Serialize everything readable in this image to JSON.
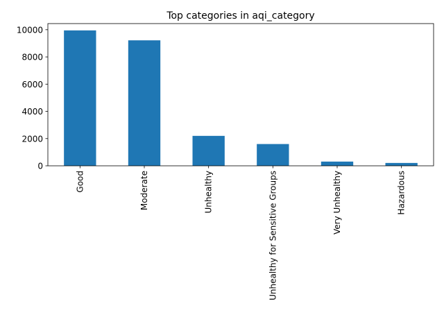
{
  "chart_data": {
    "type": "bar",
    "title": "Top categories in aqi_category",
    "xlabel": "",
    "ylabel": "",
    "categories": [
      "Good",
      "Moderate",
      "Unhealthy",
      "Unhealthy for Sensitive Groups",
      "Very Unhealthy",
      "Hazardous"
    ],
    "values": [
      9950,
      9220,
      2200,
      1600,
      310,
      210
    ],
    "ylim": [
      0,
      10450
    ],
    "yticks": [
      0,
      2000,
      4000,
      6000,
      8000,
      10000
    ],
    "bar_color": "#1f77b4",
    "grid": false,
    "legend": false
  }
}
